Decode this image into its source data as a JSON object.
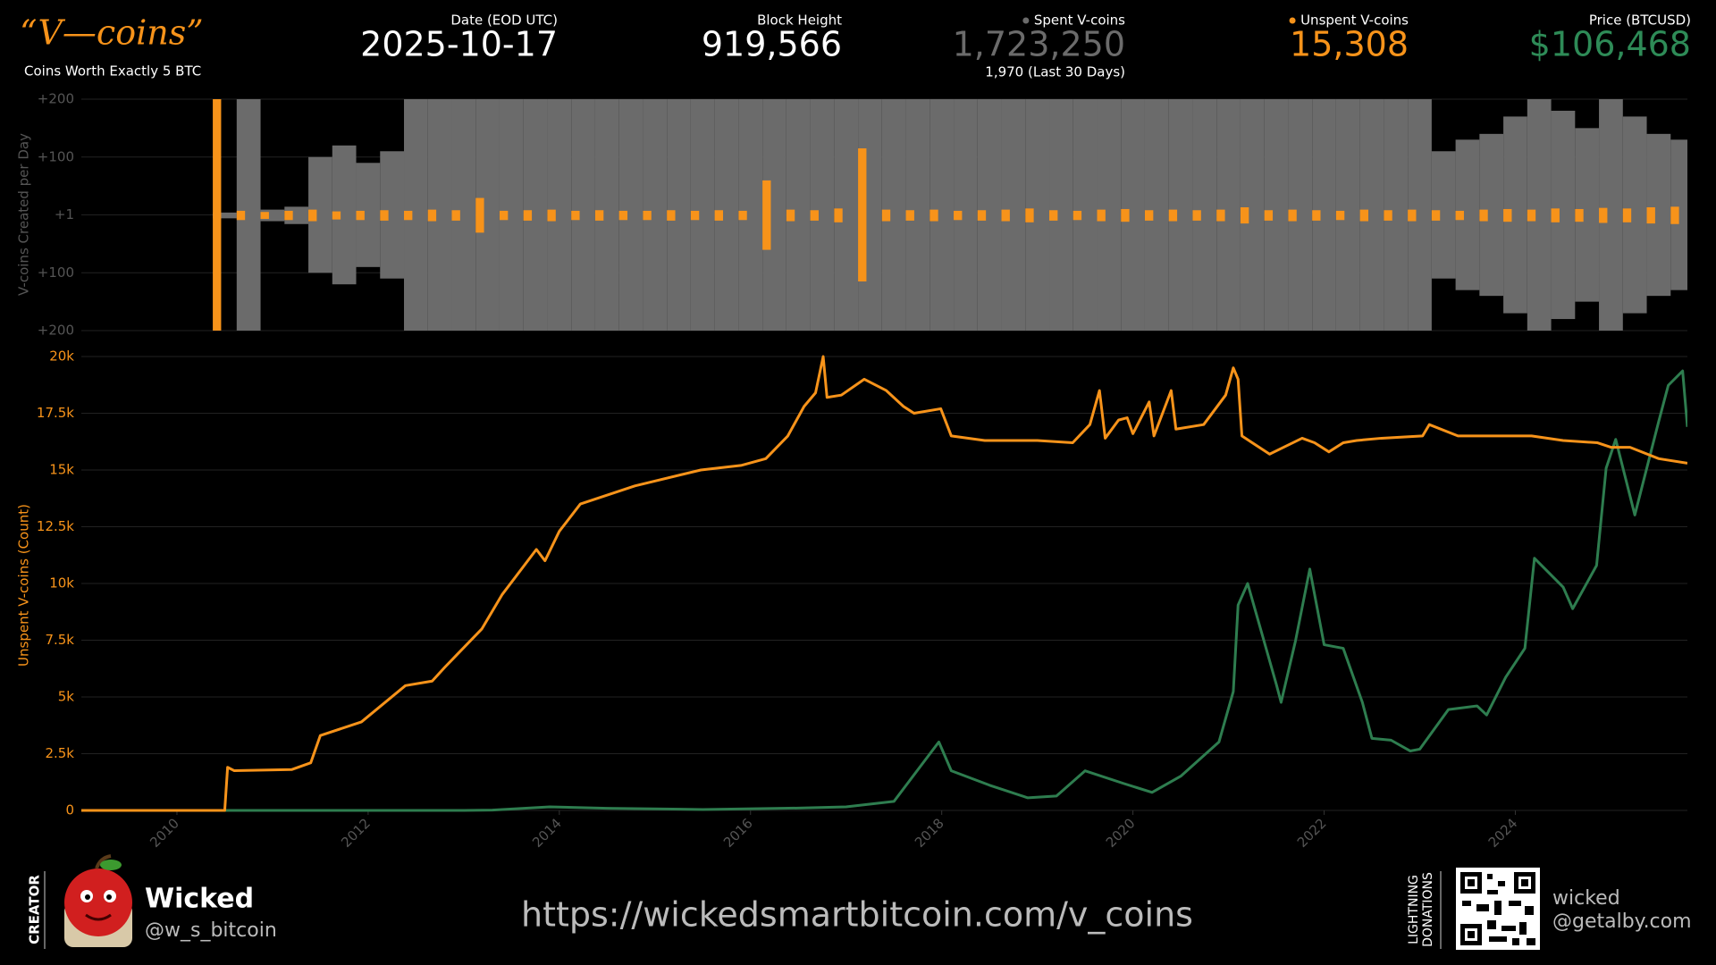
{
  "header": {
    "logo": "“V—coins”",
    "subtitle": "Coins Worth Exactly 5 BTC"
  },
  "stats": [
    {
      "label": "Date (EOD UTC)",
      "value": "2025-10-17"
    },
    {
      "label": "Block Height",
      "value": "919,566"
    },
    {
      "label": "Spent V-coins",
      "value": "1,723,250",
      "note": "1,970 (Last 30 Days)",
      "color": "#6b6b6b",
      "dot": true
    },
    {
      "label": "Unspent V-coins",
      "value": "15,308",
      "color": "#f7931a",
      "dot": true
    },
    {
      "label": "Price (BTCUSD)",
      "value": "$106,468",
      "color": "#2e8b57"
    }
  ],
  "chart_data": [
    {
      "type": "spike",
      "ylabel": "V-coins Created per Day",
      "x": [
        2010.5,
        2010.75,
        2011,
        2011.25,
        2011.5,
        2011.75,
        2012,
        2012.25,
        2012.5,
        2012.75,
        2013,
        2013.25,
        2013.5,
        2013.75,
        2014,
        2014.25,
        2014.5,
        2014.75,
        2015,
        2015.25,
        2015.5,
        2015.75,
        2016,
        2016.25,
        2016.5,
        2016.75,
        2017,
        2017.25,
        2017.5,
        2017.75,
        2018,
        2018.25,
        2018.5,
        2018.75,
        2019,
        2019.25,
        2019.5,
        2019.75,
        2020,
        2020.25,
        2020.5,
        2020.75,
        2021,
        2021.25,
        2021.5,
        2021.75,
        2022,
        2022.25,
        2022.5,
        2022.75,
        2023,
        2023.25,
        2023.5,
        2023.75,
        2024,
        2024.25,
        2024.5,
        2024.75,
        2025,
        2025.25,
        2025.5,
        2025.75
      ],
      "xlim": [
        2009,
        2025.8
      ],
      "ylim": [
        -200,
        200
      ],
      "yticks": [
        {
          "value": 200,
          "label": "+200"
        },
        {
          "value": 100,
          "label": "+100"
        },
        {
          "value": 1,
          "label": "+1"
        },
        {
          "value": -100,
          "label": "+100"
        },
        {
          "value": -200,
          "label": "+200"
        }
      ],
      "grid": true,
      "series": [
        {
          "color": "#6b6b6b",
          "values": [
            5,
            200,
            10,
            15,
            100,
            120,
            90,
            110,
            200,
            200,
            200,
            200,
            200,
            200,
            200,
            200,
            200,
            200,
            200,
            200,
            200,
            200,
            200,
            200,
            200,
            200,
            200,
            200,
            200,
            200,
            200,
            200,
            200,
            200,
            200,
            200,
            200,
            200,
            200,
            200,
            200,
            200,
            200,
            200,
            200,
            200,
            200,
            200,
            200,
            200,
            200,
            110,
            130,
            140,
            170,
            200,
            180,
            150,
            200,
            170,
            140,
            130
          ]
        },
        {
          "color": "#f7931a",
          "values": [
            200,
            8,
            6,
            8,
            10,
            7,
            8,
            9,
            8,
            10,
            9,
            30,
            8,
            9,
            10,
            8,
            9,
            8,
            8,
            9,
            8,
            9,
            8,
            60,
            10,
            9,
            12,
            115,
            10,
            9,
            10,
            8,
            9,
            10,
            12,
            9,
            8,
            10,
            11,
            9,
            10,
            9,
            10,
            14,
            9,
            10,
            9,
            8,
            10,
            9,
            10,
            9,
            8,
            10,
            11,
            10,
            12,
            11,
            13,
            12,
            14,
            15
          ]
        }
      ]
    },
    {
      "type": "line",
      "ylabel": "Unspent V-coins (Count)",
      "xlim": [
        2009,
        2025.8
      ],
      "xticks": [
        2010,
        2012,
        2014,
        2016,
        2018,
        2020,
        2022,
        2024
      ],
      "ylim": [
        0,
        20000
      ],
      "yticks": [
        0,
        {
          "value": 2500,
          "label": "2.5k"
        },
        {
          "value": 5000,
          "label": "5k"
        },
        {
          "value": 7500,
          "label": "7.5k"
        },
        {
          "value": 10000,
          "label": "10k"
        },
        {
          "value": 12500,
          "label": "12.5k"
        },
        {
          "value": 15000,
          "label": "15k"
        },
        {
          "value": 17500,
          "label": "17.5k"
        },
        {
          "value": 20000,
          "label": "20k"
        }
      ],
      "y2lim": [
        0,
        126000
      ],
      "grid": true,
      "series": [
        {
          "color": "#2e7d4f",
          "axis": "y2",
          "x": [
            2009,
            2010.5,
            2013.0,
            2013.3,
            2013.9,
            2014.5,
            2015.5,
            2016.5,
            2017.0,
            2017.5,
            2017.97,
            2018.1,
            2018.5,
            2018.9,
            2019.2,
            2019.5,
            2019.9,
            2020.2,
            2020.5,
            2020.9,
            2021.05,
            2021.1,
            2021.2,
            2021.5,
            2021.55,
            2021.7,
            2021.85,
            2022.0,
            2022.2,
            2022.4,
            2022.5,
            2022.7,
            2022.9,
            2023.0,
            2023.3,
            2023.6,
            2023.7,
            2023.9,
            2024.1,
            2024.2,
            2024.5,
            2024.6,
            2024.85,
            2024.95,
            2025.05,
            2025.25,
            2025.5,
            2025.6,
            2025.75,
            2025.8
          ],
          "values": [
            0,
            0.1,
            13,
            100,
            1000,
            600,
            250,
            650,
            1000,
            2500,
            19000,
            11000,
            7000,
            3500,
            4000,
            11000,
            7500,
            5000,
            9500,
            19000,
            33000,
            57000,
            63000,
            35000,
            30000,
            47000,
            67000,
            46000,
            45000,
            30000,
            20000,
            19500,
            16500,
            17000,
            28000,
            29000,
            26500,
            37000,
            45000,
            70000,
            62000,
            56000,
            68000,
            95000,
            103000,
            82000,
            108000,
            118000,
            122000,
            106468
          ]
        },
        {
          "color": "#f7931a",
          "x": [
            2009.0,
            2010.5,
            2010.53,
            2010.6,
            2011.2,
            2011.4,
            2011.5,
            2011.93,
            2012.39,
            2012.67,
            2012.8,
            2013.19,
            2013.4,
            2013.76,
            2013.85,
            2014.0,
            2014.22,
            2014.79,
            2015.48,
            2015.9,
            2016.16,
            2016.39,
            2016.56,
            2016.68,
            2016.76,
            2016.8,
            2016.95,
            2017.19,
            2017.42,
            2017.6,
            2017.71,
            2017.99,
            2018.1,
            2018.45,
            2019.0,
            2019.37,
            2019.55,
            2019.65,
            2019.71,
            2019.85,
            2019.94,
            2020.0,
            2020.17,
            2020.22,
            2020.4,
            2020.45,
            2020.74,
            2020.97,
            2021.05,
            2021.1,
            2021.14,
            2021.43,
            2021.77,
            2021.9,
            2022.05,
            2022.2,
            2022.34,
            2022.6,
            2023.03,
            2023.1,
            2023.4,
            2024.17,
            2024.5,
            2024.86,
            2025.0,
            2025.2,
            2025.5,
            2025.8
          ],
          "values": [
            0,
            0,
            1900,
            1750,
            1800,
            2100,
            3300,
            3900,
            5500,
            5700,
            6300,
            8000,
            9500,
            11500,
            11000,
            12300,
            13500,
            14300,
            15000,
            15200,
            15500,
            16500,
            17800,
            18400,
            20000,
            18200,
            18300,
            19000,
            18500,
            17800,
            17500,
            17700,
            16500,
            16300,
            16300,
            16200,
            17000,
            18500,
            16400,
            17200,
            17300,
            16600,
            18000,
            16500,
            18500,
            16800,
            17000,
            18300,
            19500,
            19000,
            16500,
            15700,
            16400,
            16200,
            15800,
            16200,
            16300,
            16400,
            16500,
            17000,
            16500,
            16500,
            16300,
            16200,
            16000,
            16000,
            15500,
            15300
          ]
        }
      ]
    }
  ],
  "footer": {
    "creator_label": "CREATOR",
    "name": "Wicked",
    "handle": "@w_s_bitcoin",
    "url": "https://wickedsmartbitcoin.com/v_coins",
    "donate_line1": "LIGHTNING",
    "donate_line2": "DONATIONS",
    "donate_name": "wicked",
    "donate_domain": "@getalby.com"
  }
}
